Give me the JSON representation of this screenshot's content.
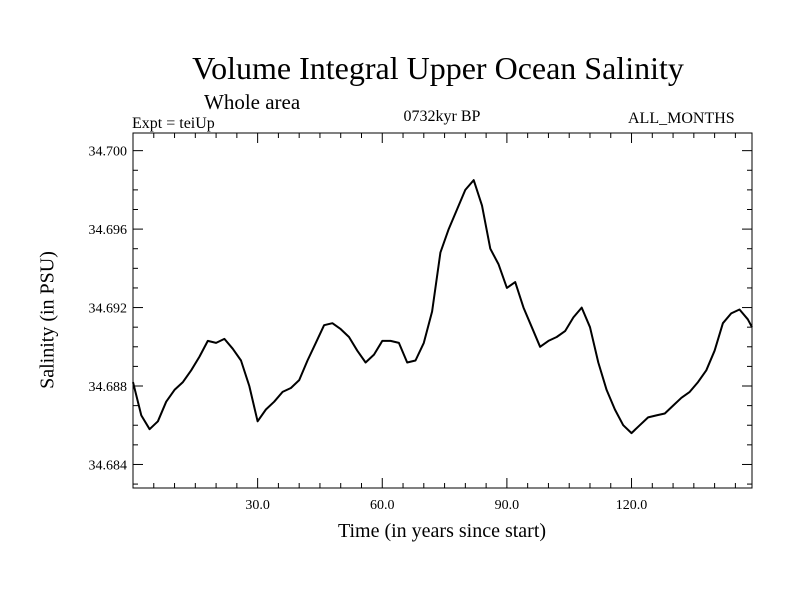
{
  "chart_data": {
    "type": "line",
    "title": "Volume Integral Upper Ocean Salinity",
    "subtitle": "Whole area",
    "experiment_label": "Expt = teiUp",
    "period_label": "0732kyr BP",
    "months_label": "ALL_MONTHS",
    "xlabel": "Time (in years since start)",
    "ylabel": "Salinity (in PSU)",
    "xlim": [
      0,
      149
    ],
    "ylim": [
      34.6828,
      34.7009
    ],
    "x_ticks": [
      30.0,
      60.0,
      90.0,
      120.0
    ],
    "x_tick_labels": [
      "30.0",
      "60.0",
      "90.0",
      "120.0"
    ],
    "y_ticks": [
      34.684,
      34.688,
      34.692,
      34.696,
      34.7
    ],
    "y_tick_labels": [
      "34.684",
      "34.688",
      "34.692",
      "34.696",
      "34.700"
    ],
    "series": [
      {
        "name": "salinity",
        "x": [
          0,
          2,
          4,
          6,
          8,
          10,
          12,
          14,
          16,
          18,
          20,
          22,
          24,
          26,
          28,
          30,
          32,
          34,
          36,
          38,
          40,
          42,
          44,
          46,
          48,
          50,
          52,
          54,
          56,
          58,
          60,
          62,
          64,
          66,
          68,
          70,
          72,
          74,
          76,
          78,
          80,
          82,
          84,
          86,
          88,
          90,
          92,
          94,
          96,
          98,
          100,
          102,
          104,
          106,
          108,
          110,
          112,
          114,
          116,
          118,
          120,
          122,
          124,
          126,
          128,
          130,
          132,
          134,
          136,
          138,
          140,
          142,
          144,
          146,
          148,
          149
        ],
        "values": [
          34.6882,
          34.6865,
          34.6858,
          34.6862,
          34.6872,
          34.6878,
          34.6882,
          34.6888,
          34.6895,
          34.6903,
          34.6902,
          34.6904,
          34.6899,
          34.6893,
          34.688,
          34.6862,
          34.6868,
          34.6872,
          34.6877,
          34.6879,
          34.6883,
          34.6893,
          34.6902,
          34.6911,
          34.6912,
          34.6909,
          34.6905,
          34.6898,
          34.6892,
          34.6896,
          34.6903,
          34.6903,
          34.6902,
          34.6892,
          34.6893,
          34.6902,
          34.6918,
          34.6948,
          34.696,
          34.697,
          34.698,
          34.6985,
          34.6972,
          34.695,
          34.6942,
          34.693,
          34.6933,
          34.692,
          34.691,
          34.69,
          34.6903,
          34.6905,
          34.6908,
          34.6915,
          34.692,
          34.691,
          34.6892,
          34.6878,
          34.6868,
          34.686,
          34.6856,
          34.686,
          34.6864,
          34.6865,
          34.6866,
          34.687,
          34.6874,
          34.6877,
          34.6882,
          34.6888,
          34.6898,
          34.6912,
          34.6917,
          34.6919,
          34.6914,
          34.691
        ]
      }
    ]
  }
}
